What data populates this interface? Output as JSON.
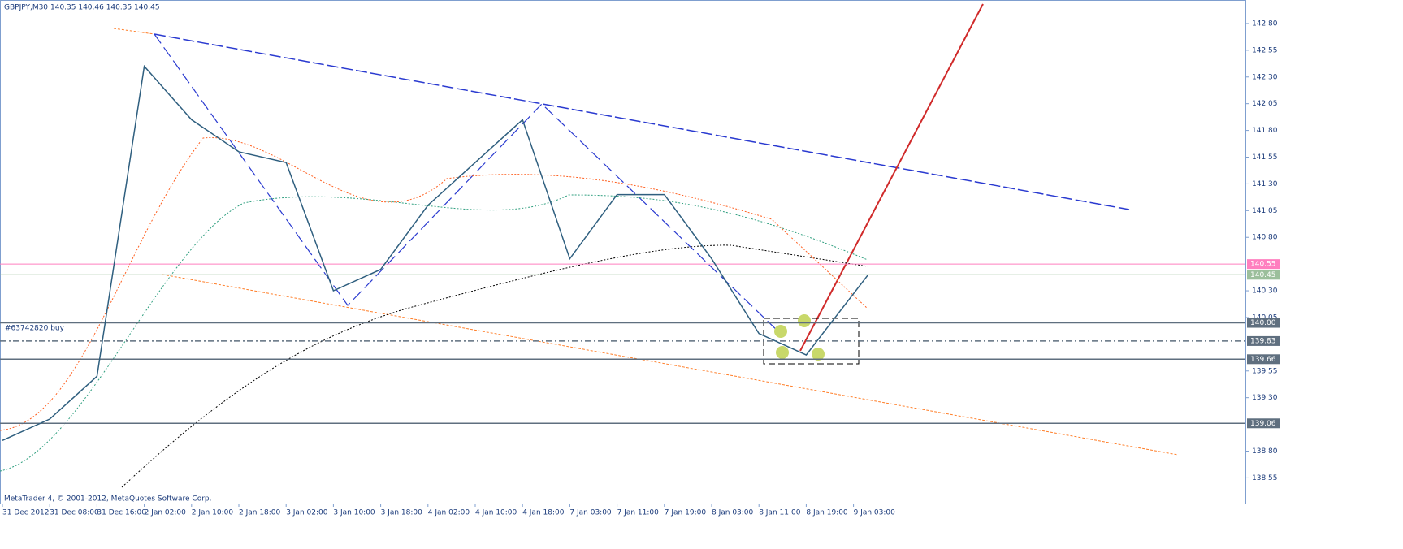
{
  "chart_data": {
    "type": "line",
    "title": "GBPJPY,M30",
    "quote": "140.35 140.46 140.35 140.45",
    "footer": "MetaTrader 4, © 2001-2012, MetaQuotes Software Corp.",
    "order_label": "#63742820 buy",
    "categories": [
      "31 Dec 2012",
      "31 Dec 08:00",
      "31 Dec 16:00",
      "2 Jan 02:00",
      "2 Jan 10:00",
      "2 Jan 18:00",
      "3 Jan 02:00",
      "3 Jan 10:00",
      "3 Jan 18:00",
      "4 Jan 02:00",
      "4 Jan 10:00",
      "4 Jan 18:00",
      "7 Jan 03:00",
      "7 Jan 11:00",
      "7 Jan 19:00",
      "8 Jan 03:00",
      "8 Jan 11:00",
      "8 Jan 19:00",
      "9 Jan 03:00"
    ],
    "series": [
      {
        "color": "#2f5f7f",
        "values": [
          138.9,
          139.1,
          139.5,
          142.4,
          141.9,
          141.6,
          141.5,
          140.3,
          140.5,
          141.1,
          141.5,
          141.9,
          140.6,
          141.2,
          141.2,
          140.6,
          139.9,
          139.7,
          140.45
        ]
      }
    ],
    "ylim": [
      138.31,
      143.02
    ],
    "yticks": [
      {
        "value": 142.8,
        "label": "142.80"
      },
      142.55,
      {
        "value": 142.3,
        "label": "142.30"
      },
      142.05,
      {
        "value": 141.8,
        "label": "141.80"
      },
      141.55,
      {
        "value": 141.3,
        "label": "141.30"
      },
      141.05,
      {
        "value": 140.8,
        "label": "140.80"
      },
      {
        "value": 140.3,
        "label": "140.30"
      },
      140.05,
      139.55,
      {
        "value": 139.3,
        "label": "139.30"
      },
      {
        "value": 138.8,
        "label": "138.80"
      },
      138.55
    ],
    "levels": [
      {
        "value": 140.55,
        "label": "140.55",
        "color": "#ff7fbf"
      },
      {
        "value": 140.45,
        "label": "140.45",
        "color": "#9cbf9c"
      },
      {
        "value": 140.0,
        "label": "140.00",
        "color": "#5f6f7f"
      },
      {
        "value": 139.83,
        "label": "139.83",
        "color": "#5f6f7f"
      },
      {
        "value": 139.66,
        "label": "139.66",
        "color": "#5f6f7f"
      },
      {
        "value": 139.06,
        "label": "139.06",
        "color": "#5f6f7f"
      }
    ]
  }
}
